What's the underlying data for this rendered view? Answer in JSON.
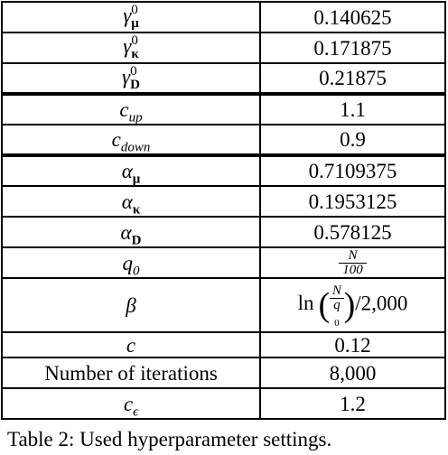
{
  "table": {
    "rows": [
      {
        "param": {
          "base": "γ",
          "sub": "μ",
          "sup": "0",
          "bold_sub": true
        },
        "value": "0.140625"
      },
      {
        "param": {
          "base": "γ",
          "sub": "κ",
          "sup": "0",
          "bold_sub": true
        },
        "value": "0.171875"
      },
      {
        "param": {
          "base": "γ",
          "sub": "D",
          "sup": "0",
          "bold_sub": true
        },
        "value": "0.21875"
      },
      {
        "param": {
          "base": "c",
          "sub": "up"
        },
        "value": "1.1"
      },
      {
        "param": {
          "base": "c",
          "sub": "down"
        },
        "value": "0.9"
      },
      {
        "param": {
          "base": "α",
          "sub": "μ",
          "bold_sub": true
        },
        "value": "0.7109375"
      },
      {
        "param": {
          "base": "α",
          "sub": "κ",
          "bold_sub": true
        },
        "value": "0.1953125"
      },
      {
        "param": {
          "base": "α",
          "sub": "D",
          "bold_sub": true
        },
        "value": "0.578125"
      },
      {
        "param": {
          "base": "q",
          "sub": "0"
        },
        "value": {
          "num": "N",
          "den": "100"
        }
      },
      {
        "param": {
          "base": "β"
        },
        "value": {
          "prefix": "ln",
          "open": "(",
          "num": "N",
          "den": "q",
          "den_sub": "0",
          "close": ")",
          "suffix": "/2,000"
        }
      },
      {
        "param": {
          "base": "c"
        },
        "value": "0.12"
      },
      {
        "param": {
          "base": "Number of iterations",
          "upright": true
        },
        "value": "8,000"
      },
      {
        "param": {
          "base": "c",
          "sub": "ϵ"
        },
        "value": "1.2"
      }
    ]
  },
  "caption": "Table 2: Used hyperparameter settings."
}
